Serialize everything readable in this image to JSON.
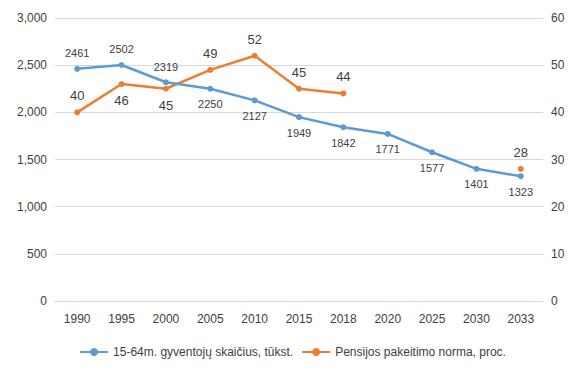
{
  "chart_data": {
    "type": "line",
    "categories": [
      "1990",
      "1995",
      "2000",
      "2005",
      "2010",
      "2015",
      "2018",
      "2020",
      "2025",
      "2030",
      "2033"
    ],
    "series": [
      {
        "name": "15-64m. gyventojų skaičius, tūkst.",
        "color": "#5b9bd5",
        "marker": "circle",
        "values": [
          2461,
          2502,
          2319,
          2250,
          2127,
          1949,
          1842,
          1771,
          1577,
          1401,
          1323
        ]
      },
      {
        "name": "Pensijos pakeitimo norma, proc.",
        "color": "#ed7d31",
        "marker": "circle",
        "axis": "y2",
        "values": [
          40,
          46,
          45,
          49,
          52,
          45,
          44,
          null,
          null,
          null,
          28
        ]
      }
    ],
    "ylim": [
      0,
      3000
    ],
    "yticks": [
      0,
      500,
      1000,
      1500,
      2000,
      2500,
      3000
    ],
    "y2lim": [
      0,
      60
    ],
    "y2ticks": [
      0,
      10,
      20,
      30,
      40,
      50,
      60
    ],
    "grid": true,
    "legend": "bottom",
    "data_labels": true
  }
}
